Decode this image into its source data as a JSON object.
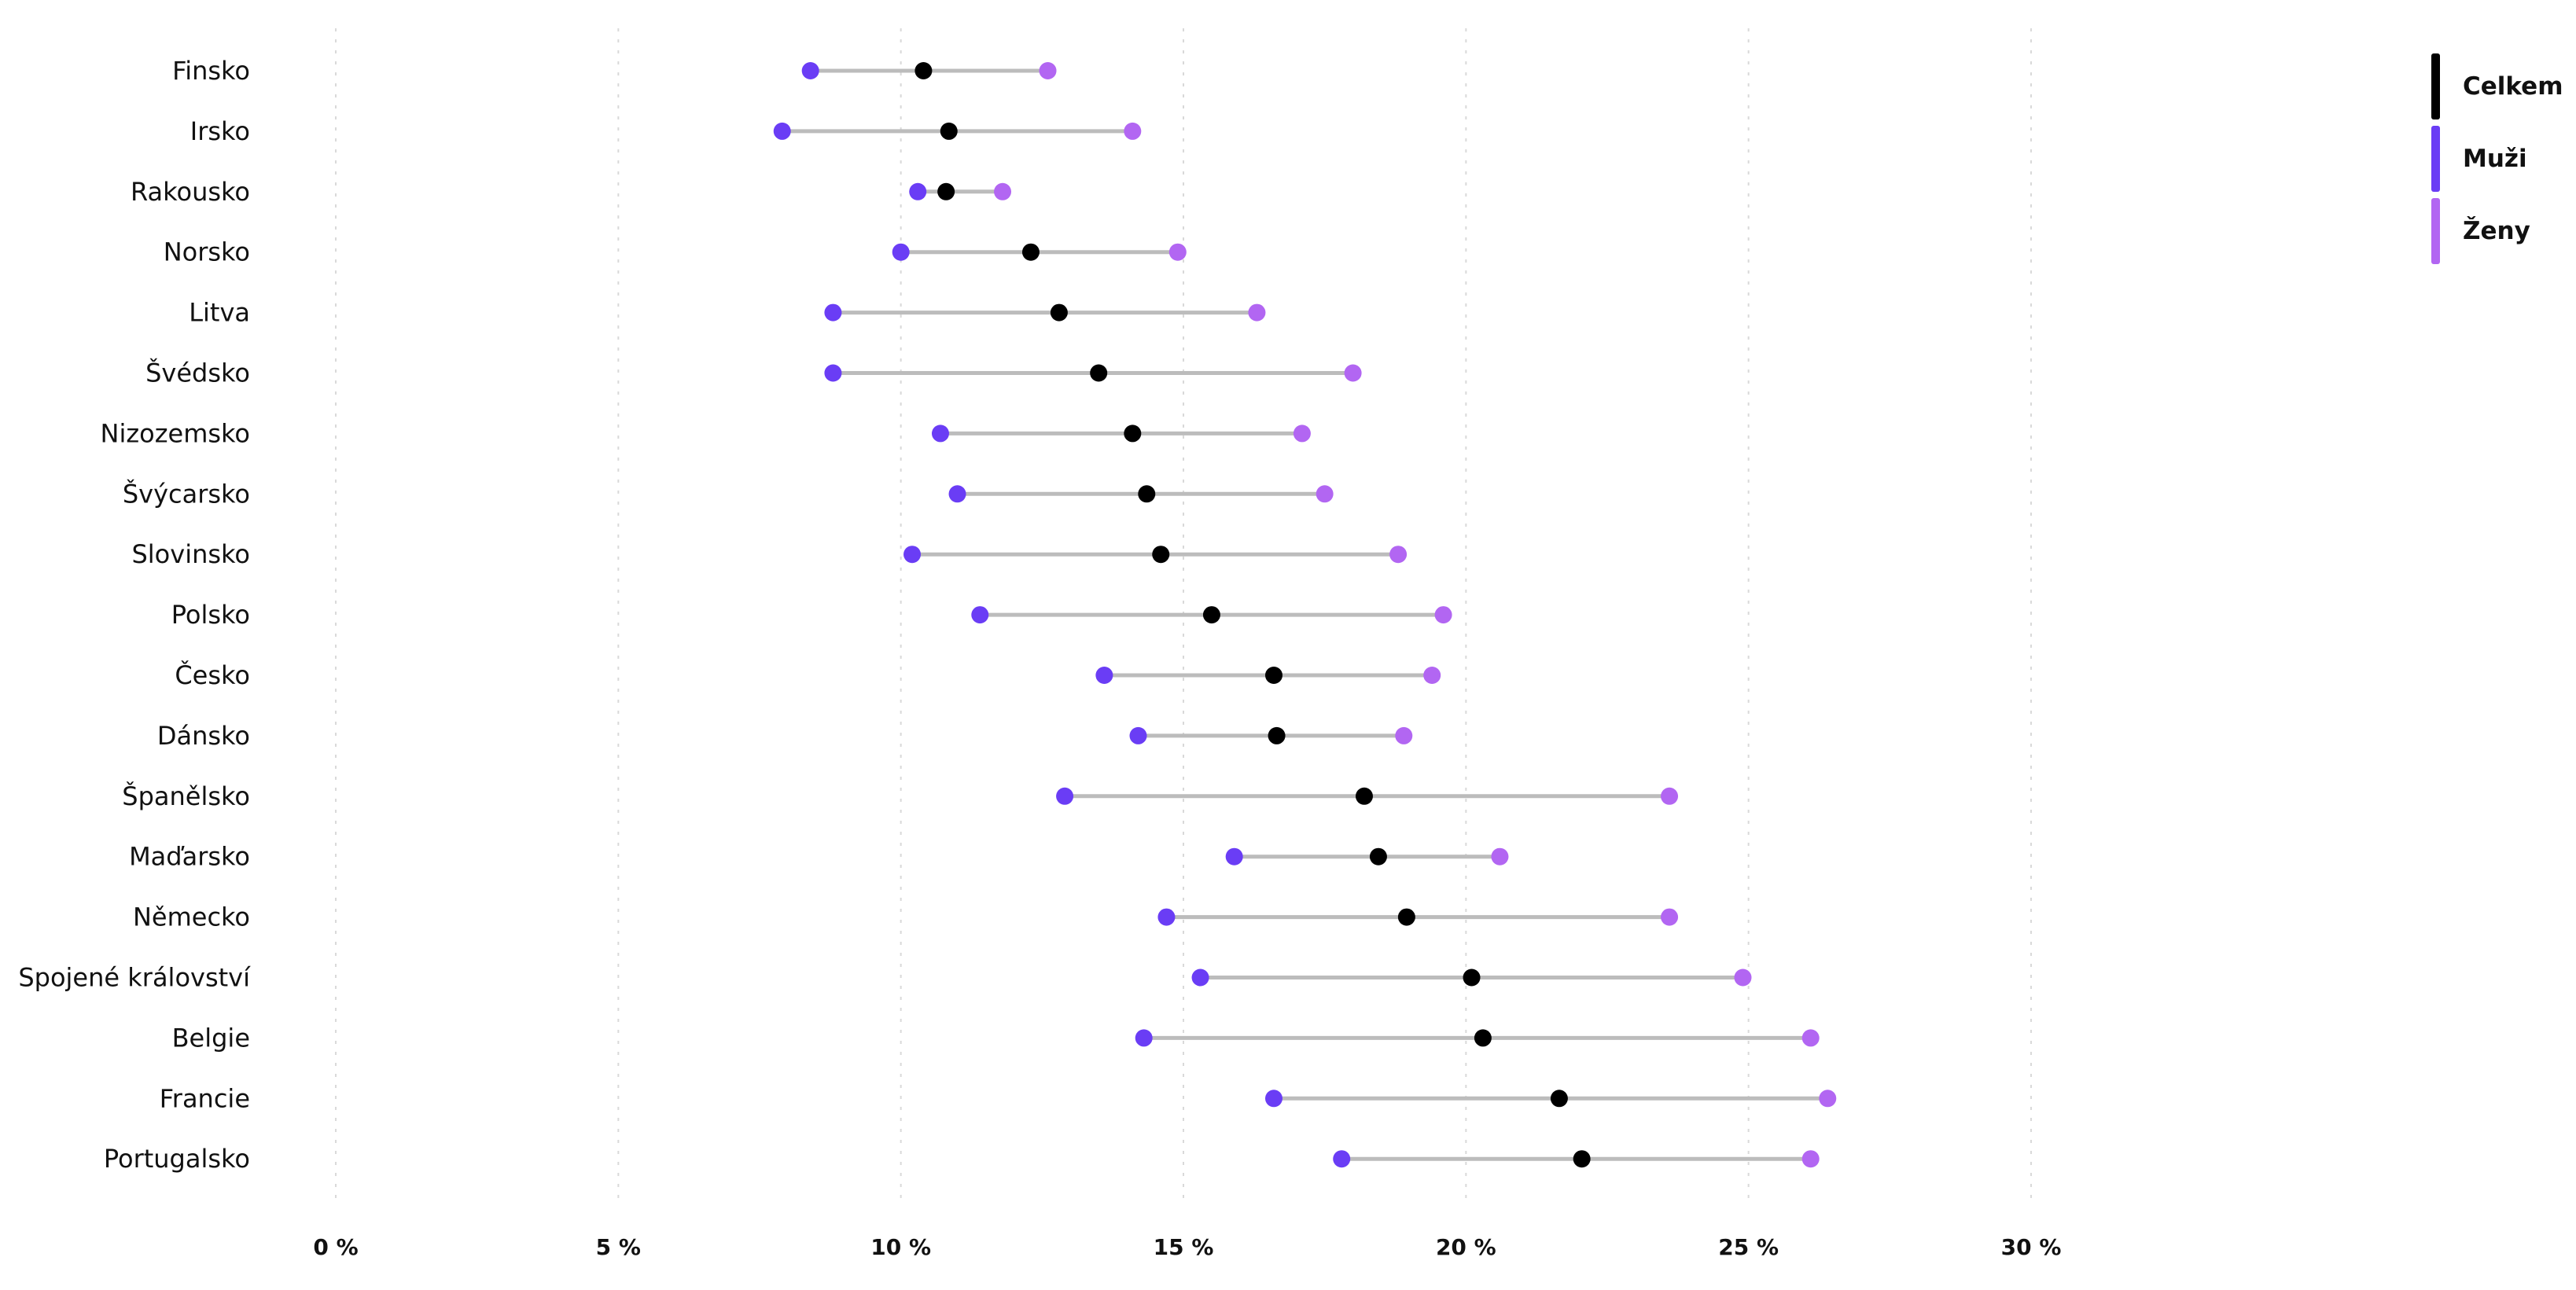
{
  "chart_data": {
    "type": "dot-range",
    "title": "",
    "xlabel": "",
    "ylabel": "",
    "xlim": [
      0,
      30
    ],
    "xticks": [
      0,
      5,
      10,
      15,
      20,
      25,
      30
    ],
    "tick_labels": [
      "0 %",
      "5 %",
      "10 %",
      "15 %",
      "20 %",
      "25 %",
      "30 %"
    ],
    "grid": "vertical dotted",
    "legend_position": "top-right",
    "categories": [
      "Finsko",
      "Irsko",
      "Rakousko",
      "Norsko",
      "Litva",
      "Švédsko",
      "Nizozemsko",
      "Švýcarsko",
      "Slovinsko",
      "Polsko",
      "Česko",
      "Dánsko",
      "Španělsko",
      "Maďarsko",
      "Německo",
      "Spojené království",
      "Belgie",
      "Francie",
      "Portugalsko"
    ],
    "series": [
      {
        "name": "Celkem",
        "color": "#000000",
        "values": [
          10.4,
          10.85,
          10.8,
          12.3,
          12.8,
          13.5,
          14.1,
          14.35,
          14.6,
          15.5,
          16.6,
          16.65,
          18.2,
          18.45,
          18.95,
          20.1,
          20.3,
          21.65,
          22.05
        ]
      },
      {
        "name": "Muži",
        "color": "#6a3df5",
        "values": [
          8.4,
          7.9,
          10.3,
          10.0,
          8.8,
          8.8,
          10.7,
          11.0,
          10.2,
          11.4,
          13.6,
          14.2,
          12.9,
          15.9,
          14.7,
          15.3,
          14.3,
          16.6,
          17.8
        ]
      },
      {
        "name": "Ženy",
        "color": "#b266f2",
        "values": [
          12.6,
          14.1,
          11.8,
          14.9,
          16.3,
          18.0,
          17.1,
          17.5,
          18.8,
          19.6,
          19.4,
          18.9,
          23.6,
          20.6,
          23.6,
          24.9,
          26.1,
          26.4,
          26.1
        ]
      }
    ]
  }
}
